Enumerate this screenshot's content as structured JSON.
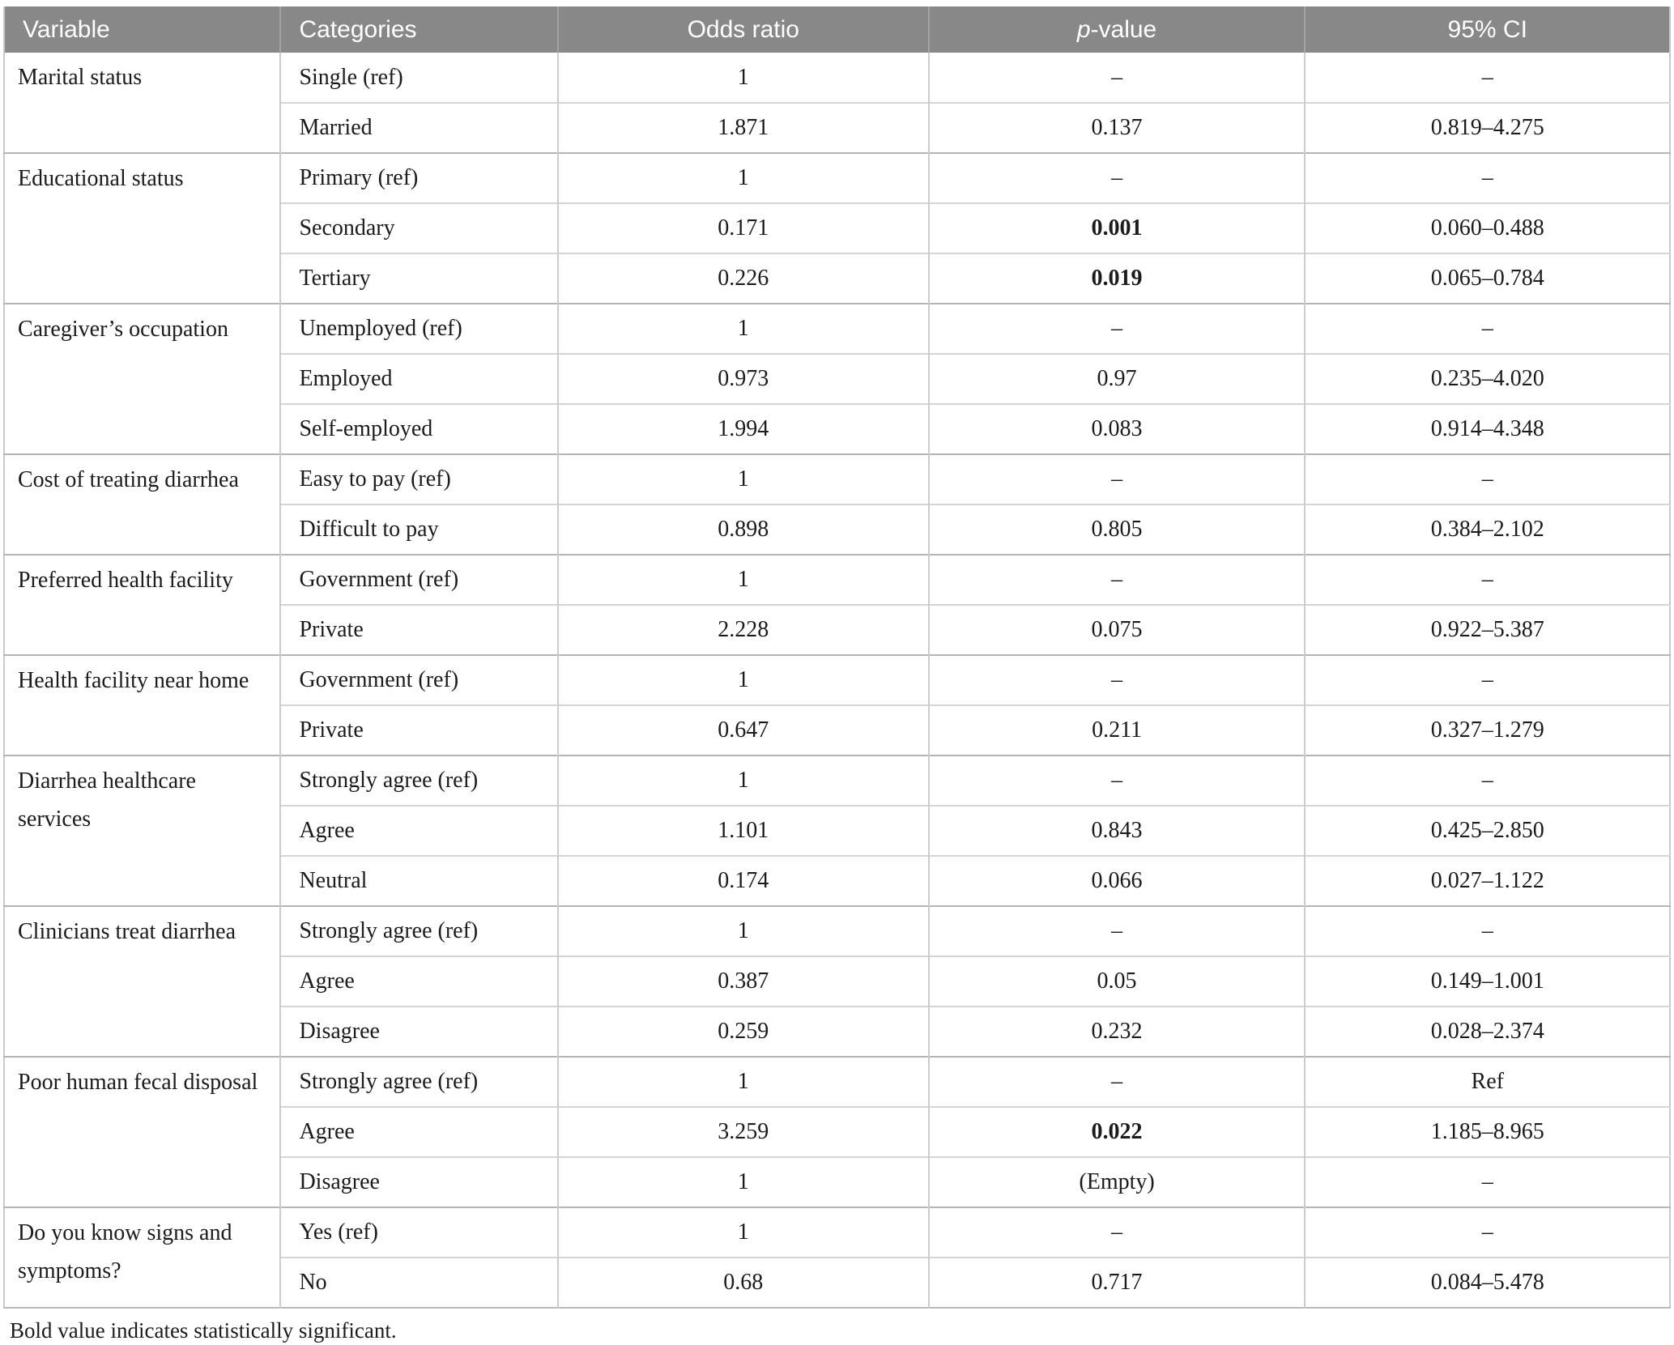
{
  "colors": {
    "header_bg": "#888888",
    "header_text": "#ffffff",
    "row_line": "#d4d4d4",
    "group_line": "#b5b5b5",
    "body_text": "#1b1b1b"
  },
  "header": {
    "variable": "Variable",
    "categories": "Categories",
    "odds_ratio": "Odds ratio",
    "p_value_italic": "p",
    "p_value_rest": "-value",
    "ci": "95% CI"
  },
  "table": {
    "groups": [
      {
        "variable": "Marital status",
        "rows": [
          {
            "category": "Single (ref)",
            "or": "1",
            "p": "–",
            "p_bold": false,
            "ci": "–"
          },
          {
            "category": "Married",
            "or": "1.871",
            "p": "0.137",
            "p_bold": false,
            "ci": "0.819–4.275"
          }
        ]
      },
      {
        "variable": "Educational status",
        "rows": [
          {
            "category": "Primary (ref)",
            "or": "1",
            "p": "–",
            "p_bold": false,
            "ci": "–"
          },
          {
            "category": "Secondary",
            "or": "0.171",
            "p": "0.001",
            "p_bold": true,
            "ci": "0.060–0.488"
          },
          {
            "category": "Tertiary",
            "or": "0.226",
            "p": "0.019",
            "p_bold": true,
            "ci": "0.065–0.784"
          }
        ]
      },
      {
        "variable": "Caregiver’s occupation",
        "rows": [
          {
            "category": "Unemployed (ref)",
            "or": "1",
            "p": "–",
            "p_bold": false,
            "ci": "–"
          },
          {
            "category": "Employed",
            "or": "0.973",
            "p": "0.97",
            "p_bold": false,
            "ci": "0.235–4.020"
          },
          {
            "category": "Self-employed",
            "or": "1.994",
            "p": "0.083",
            "p_bold": false,
            "ci": "0.914–4.348"
          }
        ]
      },
      {
        "variable": "Cost of treating diarrhea",
        "rows": [
          {
            "category": "Easy to pay (ref)",
            "or": "1",
            "p": "–",
            "p_bold": false,
            "ci": "–"
          },
          {
            "category": "Difficult to pay",
            "or": "0.898",
            "p": "0.805",
            "p_bold": false,
            "ci": "0.384–2.102"
          }
        ]
      },
      {
        "variable": "Preferred health facility",
        "rows": [
          {
            "category": "Government (ref)",
            "or": "1",
            "p": "–",
            "p_bold": false,
            "ci": "–"
          },
          {
            "category": "Private",
            "or": "2.228",
            "p": "0.075",
            "p_bold": false,
            "ci": "0.922–5.387"
          }
        ]
      },
      {
        "variable": "Health facility near home",
        "rows": [
          {
            "category": "Government (ref)",
            "or": "1",
            "p": "–",
            "p_bold": false,
            "ci": "–"
          },
          {
            "category": "Private",
            "or": "0.647",
            "p": "0.211",
            "p_bold": false,
            "ci": "0.327–1.279"
          }
        ]
      },
      {
        "variable": "Diarrhea healthcare services",
        "rows": [
          {
            "category": "Strongly agree (ref)",
            "or": "1",
            "p": "–",
            "p_bold": false,
            "ci": "–"
          },
          {
            "category": "Agree",
            "or": "1.101",
            "p": "0.843",
            "p_bold": false,
            "ci": "0.425–2.850"
          },
          {
            "category": "Neutral",
            "or": "0.174",
            "p": "0.066",
            "p_bold": false,
            "ci": "0.027–1.122"
          }
        ]
      },
      {
        "variable": "Clinicians treat diarrhea",
        "rows": [
          {
            "category": "Strongly agree (ref)",
            "or": "1",
            "p": "–",
            "p_bold": false,
            "ci": "–"
          },
          {
            "category": "Agree",
            "or": "0.387",
            "p": "0.05",
            "p_bold": false,
            "ci": "0.149–1.001"
          },
          {
            "category": "Disagree",
            "or": "0.259",
            "p": "0.232",
            "p_bold": false,
            "ci": "0.028–2.374"
          }
        ]
      },
      {
        "variable": "Poor human fecal disposal",
        "rows": [
          {
            "category": "Strongly agree (ref)",
            "or": "1",
            "p": "–",
            "p_bold": false,
            "ci": "Ref"
          },
          {
            "category": "Agree",
            "or": "3.259",
            "p": "0.022",
            "p_bold": true,
            "ci": "1.185–8.965"
          },
          {
            "category": "Disagree",
            "or": "1",
            "p": "(Empty)",
            "p_bold": false,
            "ci": "–"
          }
        ]
      },
      {
        "variable": "Do you know signs and symptoms?",
        "rows": [
          {
            "category": "Yes (ref)",
            "or": "1",
            "p": "–",
            "p_bold": false,
            "ci": "–"
          },
          {
            "category": "No",
            "or": "0.68",
            "p": "0.717",
            "p_bold": false,
            "ci": "0.084–5.478"
          }
        ]
      }
    ]
  },
  "footnote": "Bold value indicates statistically significant."
}
